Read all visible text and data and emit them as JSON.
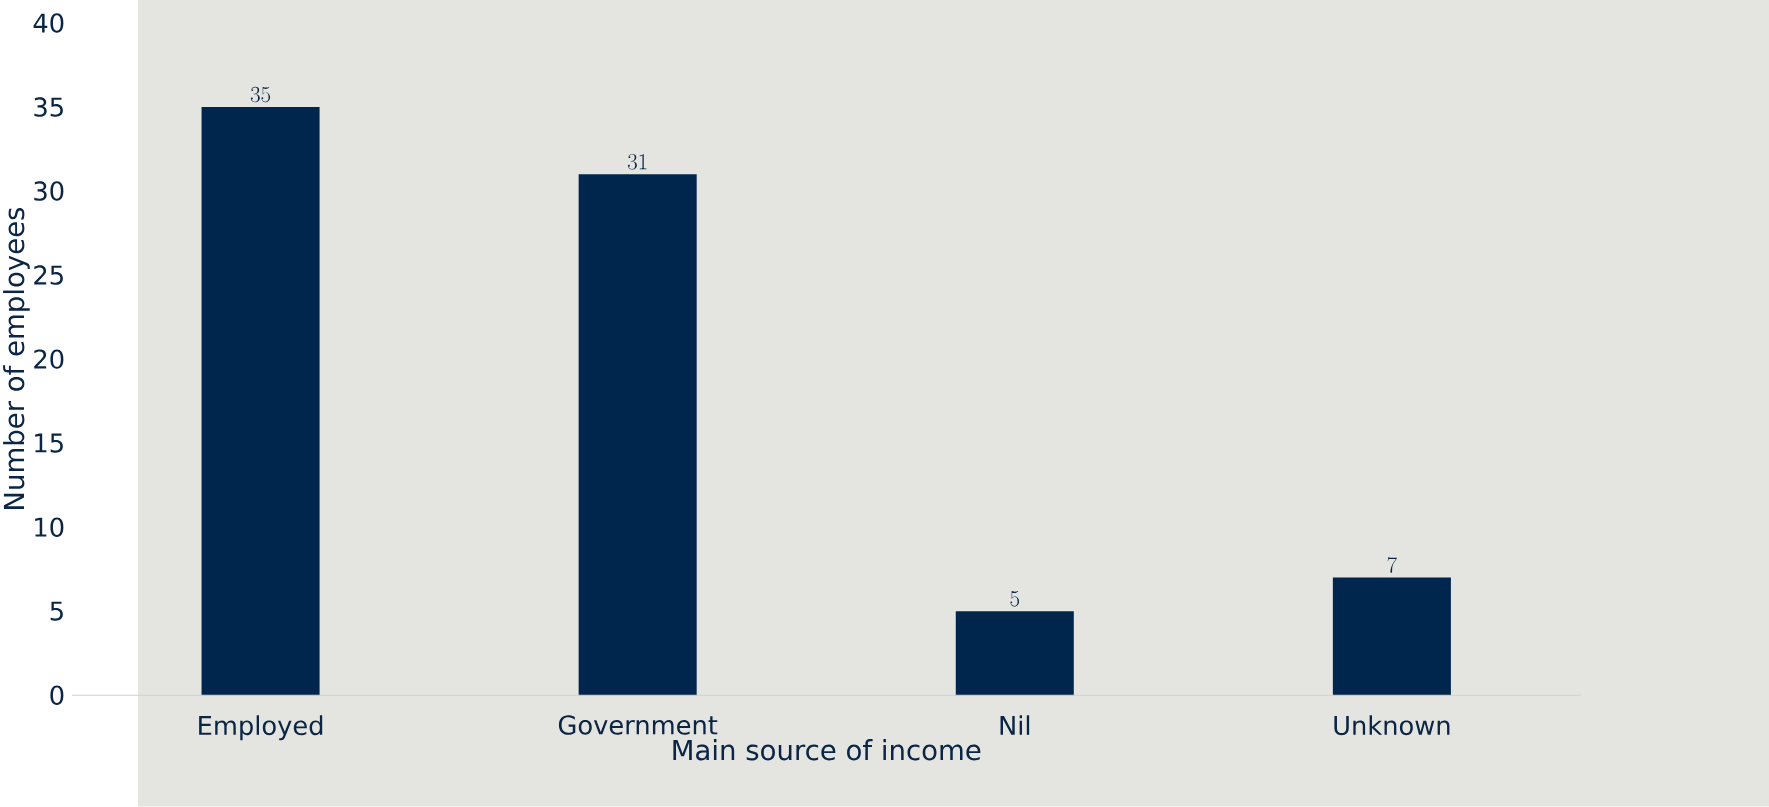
{
  "chart_data": {
    "type": "bar",
    "xlabel": "Main source of income",
    "ylabel": "Number of employees",
    "categories": [
      "Employed",
      "Government",
      "Nil",
      "Unknown"
    ],
    "values": [
      35,
      31,
      5,
      7
    ],
    "color": "#00264d",
    "ylim": [
      0,
      40
    ],
    "yticks": [
      0,
      5,
      10,
      15,
      20,
      25,
      30,
      35,
      40
    ],
    "grid": false,
    "data_labels": true
  }
}
